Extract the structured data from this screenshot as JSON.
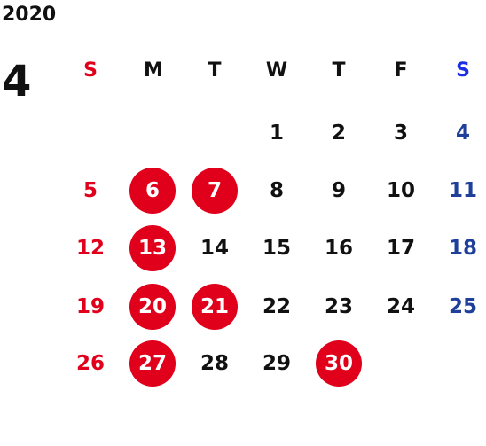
{
  "calendar": {
    "year": "2020",
    "month": "4",
    "weekdays": [
      "S",
      "M",
      "T",
      "W",
      "T",
      "F",
      "S"
    ],
    "weeks": [
      [
        "",
        "",
        "",
        "1",
        "2",
        "3",
        "4"
      ],
      [
        "5",
        "6",
        "7",
        "8",
        "9",
        "10",
        "11"
      ],
      [
        "12",
        "13",
        "14",
        "15",
        "16",
        "17",
        "18"
      ],
      [
        "19",
        "20",
        "21",
        "22",
        "23",
        "24",
        "25"
      ],
      [
        "26",
        "27",
        "28",
        "29",
        "30",
        "",
        ""
      ]
    ],
    "highlighted_days": [
      "6",
      "7",
      "13",
      "20",
      "21",
      "27",
      "30"
    ]
  },
  "colors": {
    "sunday": "#e0001b",
    "saturday": "#1f3f9a",
    "saturday_header": "#1a2ee6",
    "highlight": "#e0001b",
    "text": "#111111"
  }
}
